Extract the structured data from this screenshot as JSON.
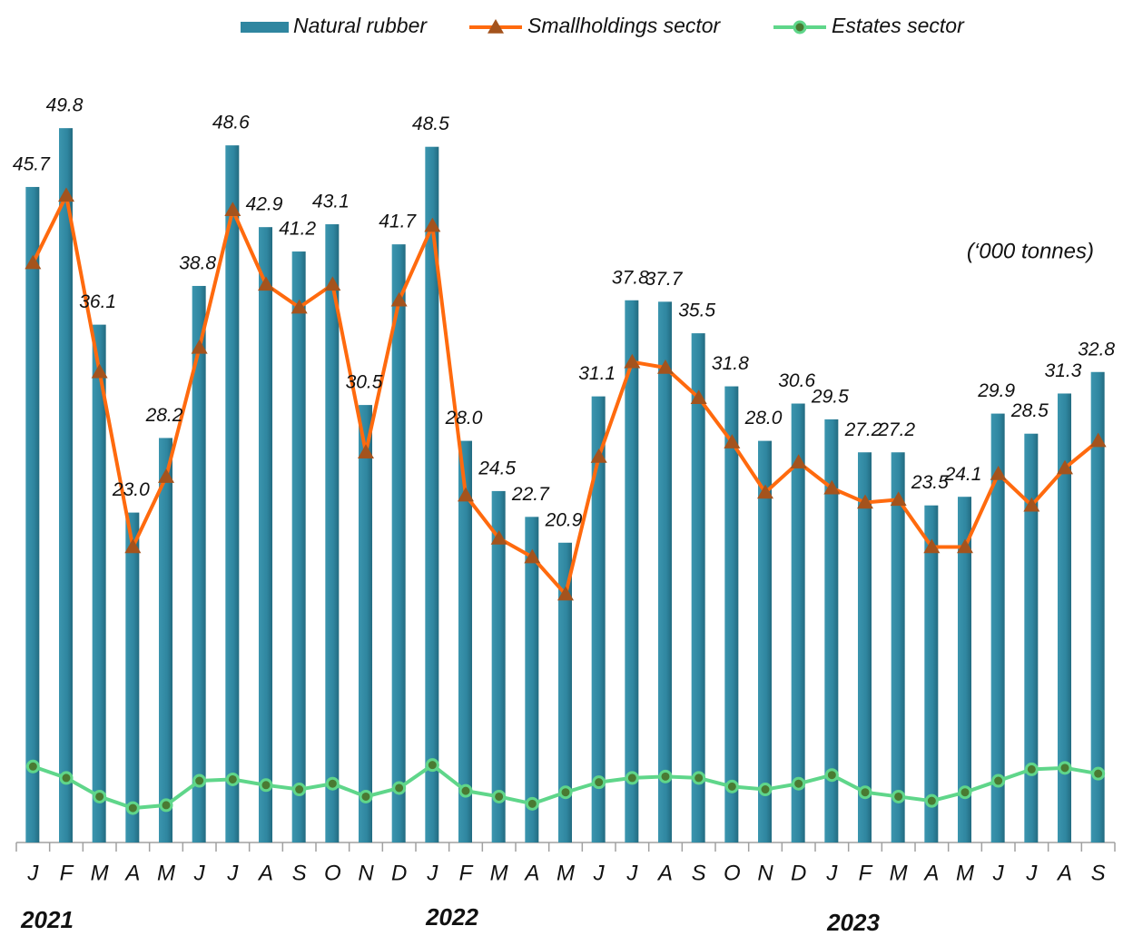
{
  "chart_data": {
    "type": "bar_line",
    "unit_note": "(‘000 tonnes)",
    "categories": [
      "J",
      "F",
      "M",
      "A",
      "M",
      "J",
      "J",
      "A",
      "S",
      "O",
      "N",
      "D",
      "J",
      "F",
      "M",
      "A",
      "M",
      "J",
      "J",
      "A",
      "S",
      "O",
      "N",
      "D",
      "J",
      "F",
      "M",
      "A",
      "M",
      "J",
      "J",
      "A",
      "S"
    ],
    "years": [
      "2021",
      "2022",
      "2023"
    ],
    "ylim": [
      0,
      55
    ],
    "legend": "top",
    "series": [
      {
        "name": "Natural rubber",
        "kind": "bar",
        "color": "#2f86a0",
        "values": [
          45.7,
          49.8,
          36.1,
          23.0,
          28.2,
          38.8,
          48.6,
          42.9,
          41.2,
          43.1,
          30.5,
          41.7,
          48.5,
          28.0,
          24.5,
          22.7,
          20.9,
          31.1,
          37.8,
          37.7,
          35.5,
          31.8,
          28.0,
          30.6,
          29.5,
          27.2,
          27.2,
          23.5,
          24.1,
          29.9,
          28.5,
          31.3,
          32.8
        ],
        "value_labels": [
          "45.7",
          "49.8",
          "36.1",
          "23.0",
          "28.2",
          "38.8",
          "48.6",
          "42.9",
          "41.2",
          "43.1",
          "30.5",
          "41.7",
          "48.5",
          "28.0",
          "24.5",
          "22.7",
          "20.9",
          "31.1",
          "37.8",
          "37.7",
          "35.5",
          "31.8",
          "28.0",
          "30.6",
          "29.5",
          "27.2",
          "27.2",
          "23.5",
          "24.1",
          "29.9",
          "28.5",
          "31.3",
          "32.8"
        ]
      },
      {
        "name": "Smallholdings sector",
        "kind": "line",
        "marker": "triangle",
        "color": "#ff6a0e",
        "marker_color": "#a4531d",
        "values": [
          40.4,
          45.1,
          32.8,
          20.6,
          25.5,
          34.5,
          44.1,
          38.9,
          37.3,
          38.9,
          27.2,
          37.8,
          43.0,
          24.2,
          21.2,
          19.9,
          17.3,
          26.9,
          33.5,
          33.1,
          31.0,
          27.9,
          24.4,
          26.5,
          24.7,
          23.7,
          23.9,
          20.6,
          20.6,
          25.7,
          23.5,
          26.1,
          28.0
        ]
      },
      {
        "name": "Estates sector",
        "kind": "line",
        "marker": "circle",
        "color": "#5fd68a",
        "marker_color": "#4a7a32",
        "values": [
          5.3,
          4.5,
          3.2,
          2.4,
          2.6,
          4.3,
          4.4,
          4.0,
          3.7,
          4.1,
          3.2,
          3.8,
          5.4,
          3.6,
          3.2,
          2.7,
          3.5,
          4.2,
          4.5,
          4.6,
          4.5,
          3.9,
          3.7,
          4.1,
          4.7,
          3.5,
          3.2,
          2.9,
          3.5,
          4.3,
          5.1,
          5.2,
          4.8
        ]
      }
    ]
  }
}
